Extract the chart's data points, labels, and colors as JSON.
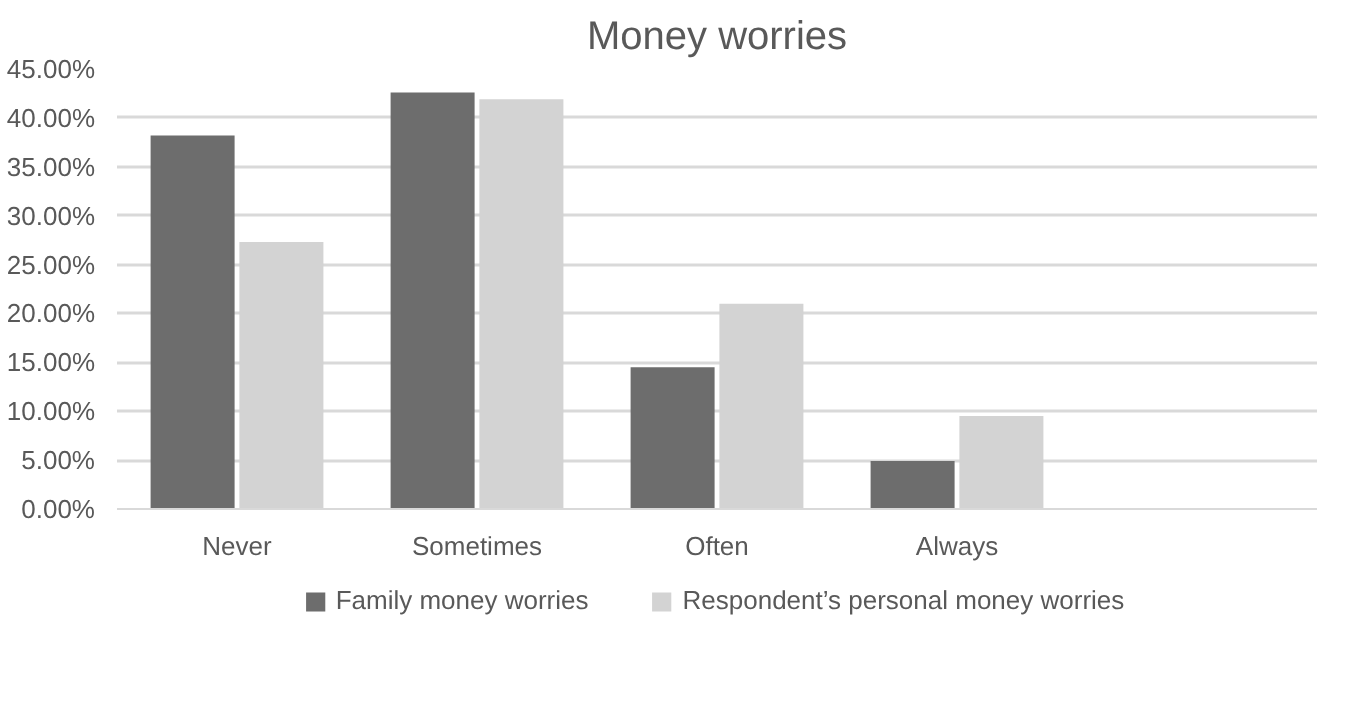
{
  "chart_data": {
    "type": "bar",
    "title": "Money worries",
    "categories": [
      "Never",
      "Sometimes",
      "Often",
      "Always",
      null
    ],
    "series": [
      {
        "name": "Family money worries",
        "color": "#6d6d6d",
        "values": [
          38.2,
          42.6,
          14.5,
          4.9,
          null
        ]
      },
      {
        "name": "Respondent’s personal money worries",
        "color": "#d3d3d3",
        "values": [
          27.3,
          41.9,
          21.0,
          9.5,
          null
        ]
      }
    ],
    "ylim": [
      0,
      45
    ],
    "yticks": [
      {
        "value": 0,
        "label": "0.00%"
      },
      {
        "value": 5,
        "label": "5.00%"
      },
      {
        "value": 10,
        "label": "10.00%"
      },
      {
        "value": 15,
        "label": "15.00%"
      },
      {
        "value": 20,
        "label": "20.00%"
      },
      {
        "value": 25,
        "label": "25.00%"
      },
      {
        "value": 30,
        "label": "30.00%"
      },
      {
        "value": 35,
        "label": "35.00%"
      },
      {
        "value": 40,
        "label": "40.00%"
      },
      {
        "value": 45,
        "label": "45.00%"
      }
    ],
    "grid": "y",
    "legend": "bottom"
  }
}
